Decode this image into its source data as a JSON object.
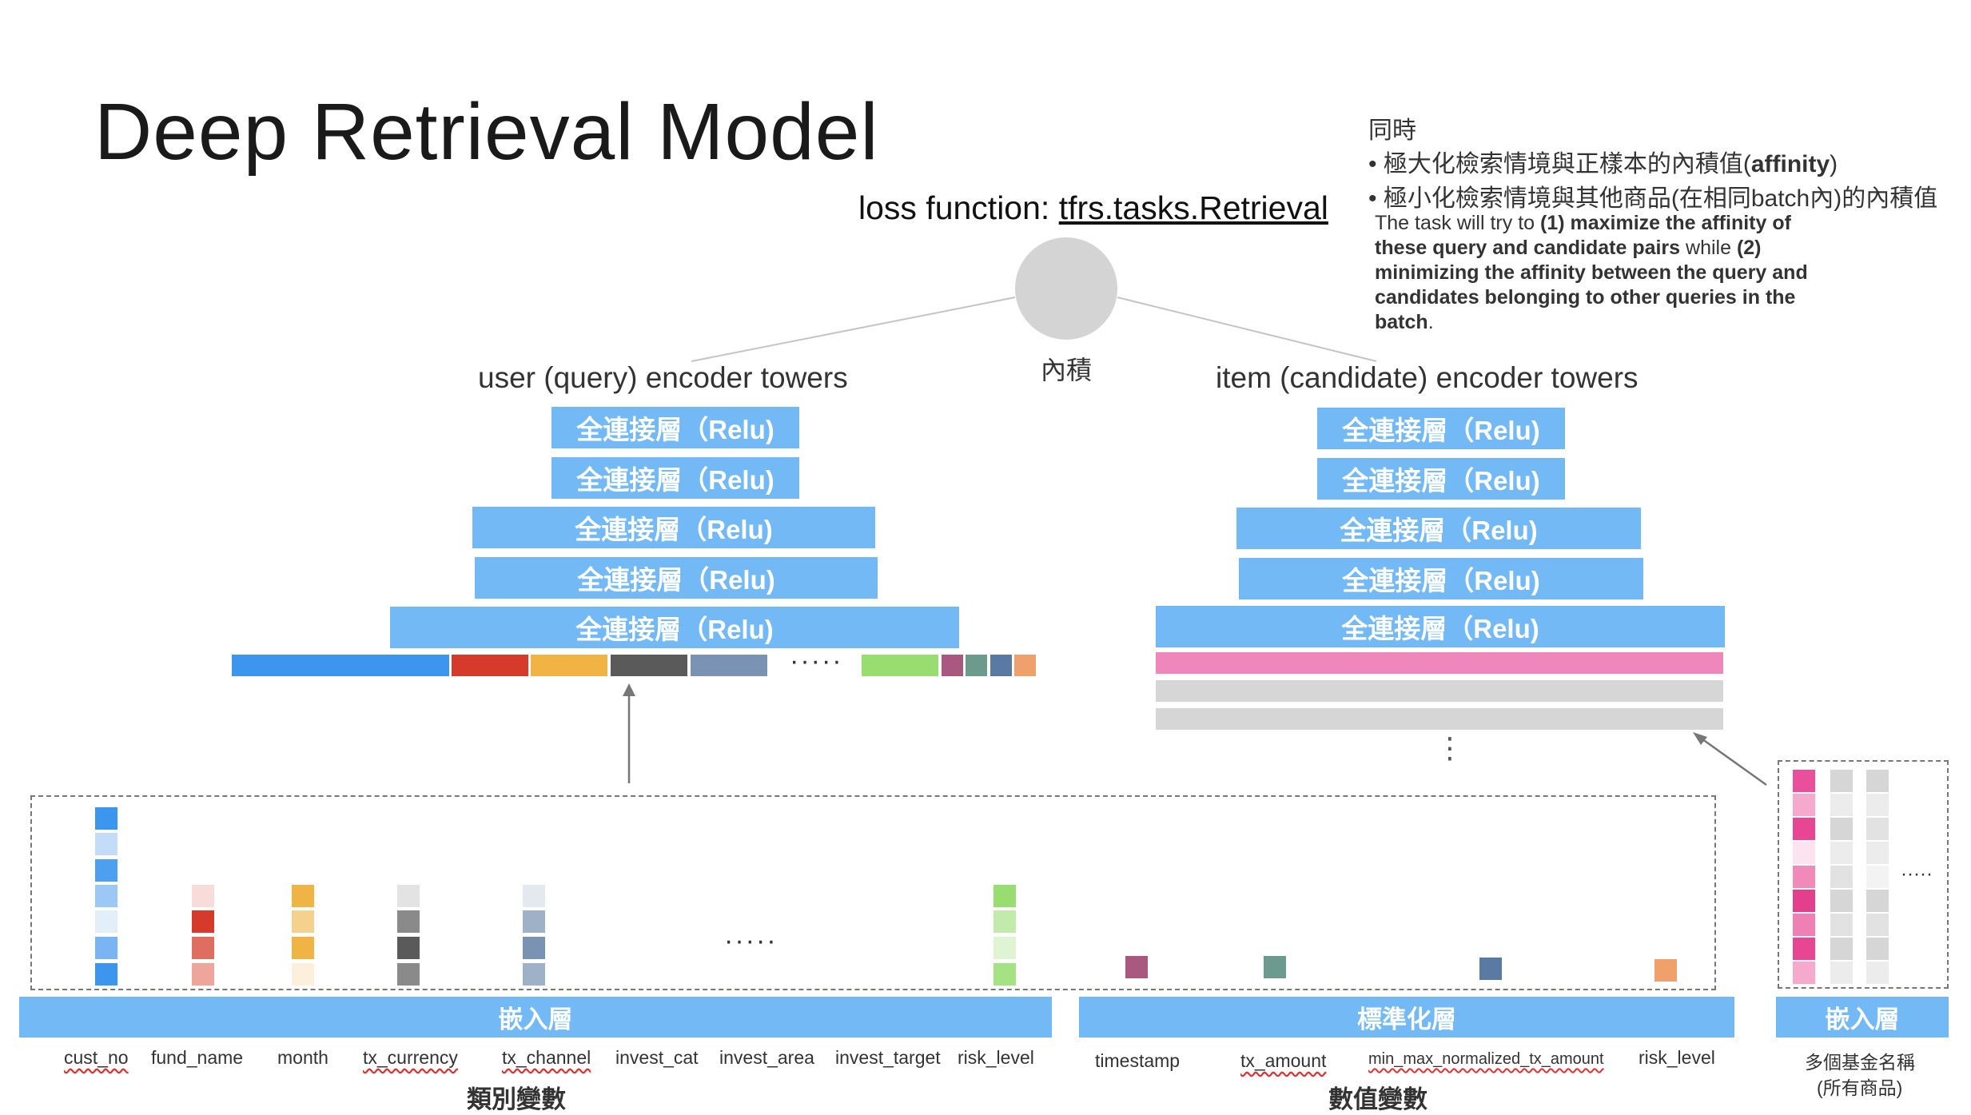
{
  "title": "Deep Retrieval Model",
  "note": {
    "heading": "同時",
    "bullet1_prefix": "• 極大化檢索情境與正樣本的內積值(",
    "bullet1_bold": "affinity",
    "bullet1_suffix": ")",
    "bullet2": "• 極小化檢索情境與其他商品(在相同batch內)的內積值",
    "desc_1": "The task will try to ",
    "desc_2": "(1) maximize the affinity of these query and candidate pairs",
    "desc_3": " while ",
    "desc_4": "(2) minimizing the affinity between the query and candidates belonging to other queries in the batch",
    "desc_5": "."
  },
  "loss": {
    "prefix": "loss function: ",
    "link": "tfrs.tasks.Retrieval"
  },
  "inner_product": "內積",
  "user_tower": {
    "title": "user (query) encoder towers",
    "layers": [
      "全連接層（Relu)",
      "全連接層（Relu)",
      "全連接層（Relu)",
      "全連接層（Relu)",
      "全連接層（Relu)"
    ],
    "dots": "·····"
  },
  "item_tower": {
    "title": "item (candidate) encoder towers",
    "layers": [
      "全連接層（Relu)",
      "全連接層（Relu)",
      "全連接層（Relu)",
      "全連接層（Relu)",
      "全連接層（Relu)"
    ],
    "vdots": "⋮"
  },
  "categorical": {
    "embed_label": "嵌入層",
    "group_label": "類別變數",
    "features": [
      "cust_no",
      "fund_name",
      "month",
      "tx_currency",
      "tx_channel",
      "invest_cat",
      "invest_area",
      "invest_target",
      "risk_level"
    ],
    "dots": "·····"
  },
  "numerical": {
    "norm_label": "標準化層",
    "group_label": "數值變數",
    "features": [
      "timestamp",
      "tx_amount",
      "min_max_normalized_tx_amount",
      "risk_level"
    ]
  },
  "items": {
    "embed_label": "嵌入層",
    "label_line1": "多個基金名稱",
    "label_line2": "(所有商品)",
    "dots": "·····"
  },
  "colors": {
    "layer": "#73b9f5",
    "blue": "#3d96ee",
    "red": "#d63a2a",
    "orange": "#f0b445",
    "dark_gray": "#5a5a5a",
    "slate": "#7a93b2",
    "green": "#97dd70",
    "mauve": "#a9597f",
    "teal": "#6c9a8c",
    "steel": "#5a7aa3",
    "peach": "#f0a06a",
    "pink": "#ef87bd",
    "light_gray": "#d6d6d6"
  }
}
